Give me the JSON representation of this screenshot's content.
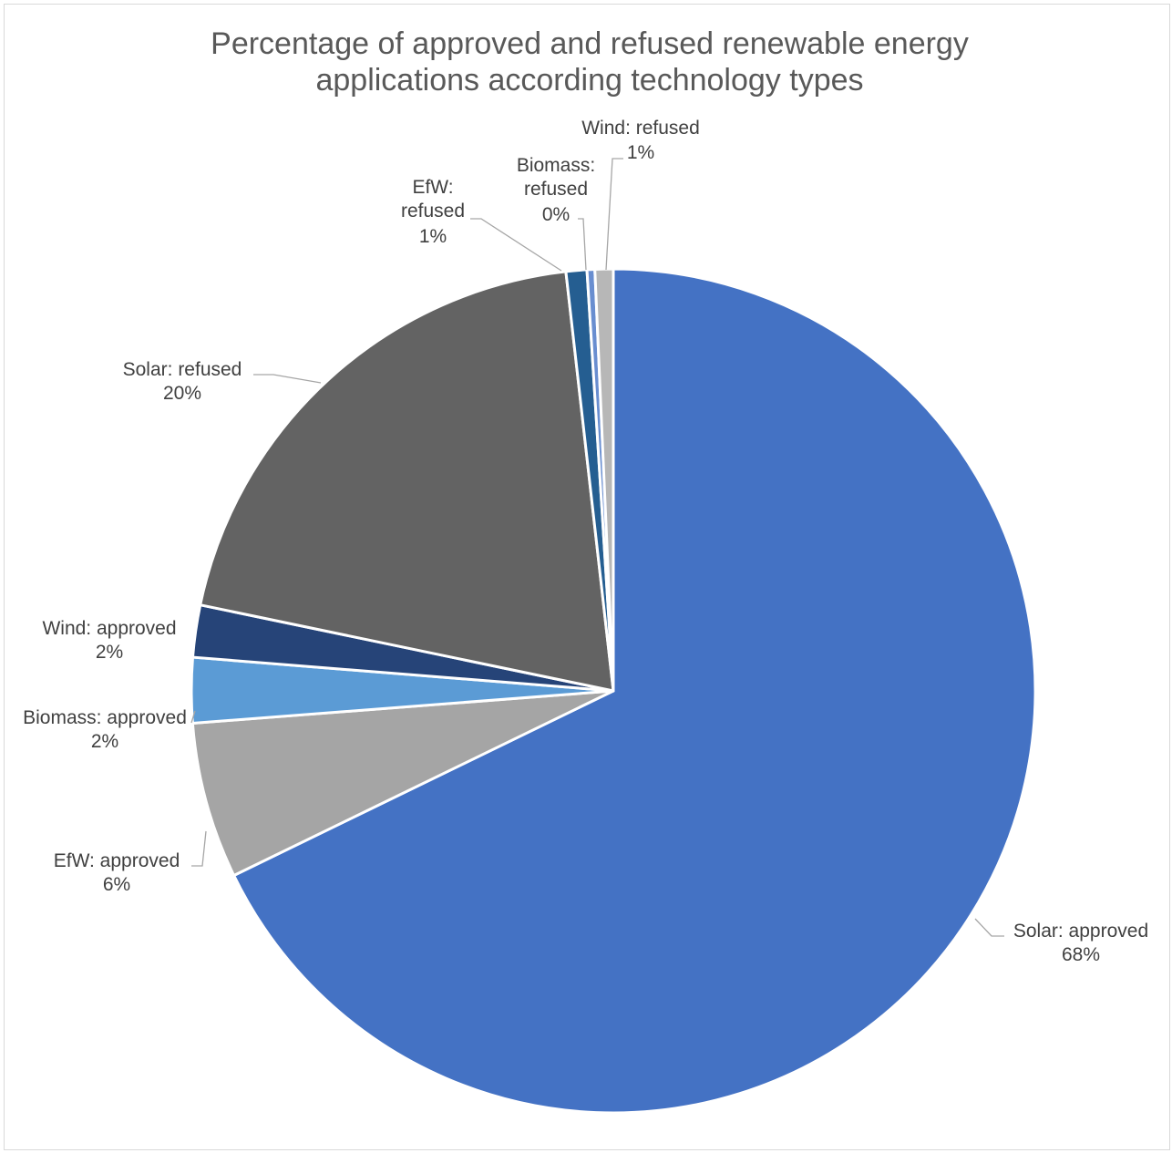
{
  "chart_data": {
    "type": "pie",
    "title": "Percentage of approved and refused renewable energy\napplications according technology types",
    "slices": [
      {
        "name": "Solar: approved",
        "value": 68,
        "label": "68%",
        "color": "#4472c4"
      },
      {
        "name": "EfW: approved",
        "value": 6,
        "label": "6%",
        "color": "#a5a5a5"
      },
      {
        "name": "Biomass: approved",
        "value": 2.5,
        "label": "2%",
        "color": "#5b9bd5"
      },
      {
        "name": "Wind: approved",
        "value": 2,
        "label": "2%",
        "color": "#264478"
      },
      {
        "name": "Solar: refused",
        "value": 20,
        "label": "20%",
        "color": "#636363"
      },
      {
        "name": "EfW: refused",
        "value": 0.8,
        "label": "1%",
        "color": "#255e91"
      },
      {
        "name": "Biomass: refused",
        "value": 0.3,
        "label": "0%",
        "color": "#698ed0"
      },
      {
        "name": "Wind: refused",
        "value": 0.7,
        "label": "1%",
        "color": "#b7b7b7"
      }
    ],
    "legend": "none",
    "start_angle": "12 o'clock, clockwise"
  }
}
